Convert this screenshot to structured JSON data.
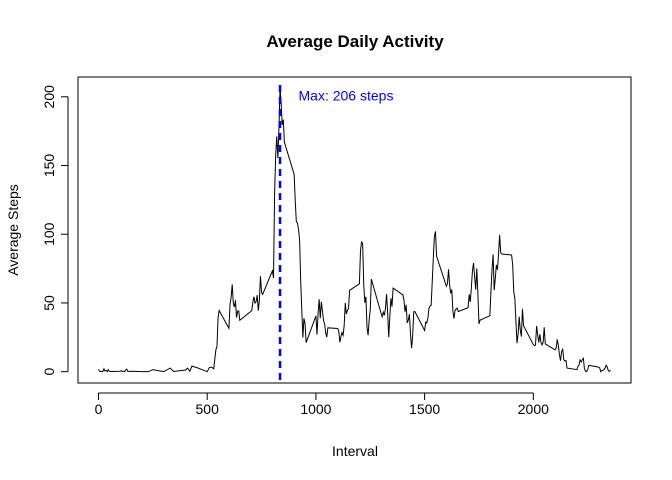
{
  "chart_data": {
    "type": "line",
    "title": "Average Daily Activity",
    "x_label": "Interval",
    "y_label": "Average Steps",
    "x": [
      0,
      5,
      10,
      15,
      20,
      25,
      30,
      35,
      40,
      45,
      50,
      55,
      100,
      105,
      110,
      115,
      120,
      125,
      130,
      135,
      140,
      150,
      200,
      230,
      250,
      300,
      330,
      345,
      400,
      410,
      420,
      430,
      440,
      450,
      500,
      510,
      520,
      530,
      540,
      545,
      550,
      555,
      600,
      605,
      610,
      615,
      620,
      625,
      630,
      635,
      640,
      645,
      650,
      700,
      705,
      710,
      715,
      720,
      725,
      730,
      735,
      740,
      745,
      750,
      755,
      800,
      805,
      810,
      815,
      820,
      825,
      830,
      835,
      840,
      845,
      850,
      855,
      900,
      905,
      910,
      915,
      920,
      925,
      930,
      935,
      940,
      945,
      950,
      955,
      1000,
      1005,
      1010,
      1015,
      1020,
      1025,
      1030,
      1035,
      1040,
      1045,
      1050,
      1055,
      1100,
      1105,
      1110,
      1115,
      1120,
      1125,
      1130,
      1135,
      1140,
      1145,
      1150,
      1155,
      1200,
      1205,
      1210,
      1215,
      1220,
      1225,
      1230,
      1235,
      1240,
      1245,
      1250,
      1255,
      1300,
      1305,
      1310,
      1315,
      1320,
      1325,
      1330,
      1335,
      1340,
      1345,
      1350,
      1355,
      1400,
      1405,
      1410,
      1415,
      1420,
      1425,
      1430,
      1435,
      1440,
      1445,
      1450,
      1455,
      1500,
      1505,
      1510,
      1515,
      1520,
      1525,
      1530,
      1535,
      1540,
      1545,
      1550,
      1555,
      1600,
      1605,
      1610,
      1615,
      1620,
      1625,
      1630,
      1635,
      1640,
      1645,
      1650,
      1655,
      1700,
      1705,
      1710,
      1715,
      1720,
      1725,
      1730,
      1735,
      1740,
      1745,
      1750,
      1755,
      1800,
      1805,
      1810,
      1815,
      1820,
      1825,
      1830,
      1835,
      1840,
      1845,
      1850,
      1855,
      1900,
      1905,
      1910,
      1915,
      1920,
      1925,
      1930,
      1935,
      1940,
      1945,
      1950,
      1955,
      2000,
      2005,
      2010,
      2015,
      2020,
      2025,
      2030,
      2035,
      2040,
      2045,
      2050,
      2055,
      2100,
      2105,
      2110,
      2115,
      2120,
      2125,
      2130,
      2135,
      2140,
      2145,
      2150,
      2155,
      2200,
      2205,
      2210,
      2215,
      2220,
      2225,
      2230,
      2235,
      2240,
      2245,
      2250,
      2255,
      2300,
      2305,
      2310,
      2315,
      2320,
      2325,
      2330,
      2335,
      2340,
      2345,
      2350,
      2355
    ],
    "series": [
      {
        "name": "Average Steps",
        "color": "#000000",
        "values": [
          1.7,
          0.3,
          0.1,
          0.2,
          0.1,
          2.1,
          0.5,
          0.9,
          0,
          1.5,
          0.3,
          0.1,
          0.3,
          0.7,
          0.2,
          0.3,
          0,
          1.1,
          1.8,
          0.2,
          0.2,
          0.3,
          0,
          0,
          1.5,
          0,
          2.6,
          0.1,
          1.2,
          2.6,
          0.3,
          4.1,
          3.5,
          3.1,
          0,
          3,
          3.3,
          2.1,
          16,
          18.3,
          39.5,
          44.5,
          31.5,
          49.3,
          53.8,
          63.5,
          50,
          47,
          52,
          39.3,
          44,
          44.2,
          37.4,
          43.8,
          44.4,
          50.5,
          54.5,
          49.9,
          50.9,
          55.7,
          44.3,
          52.3,
          69.5,
          57.8,
          56.2,
          73.4,
          68.2,
          129.4,
          157.5,
          171.2,
          155.4,
          177.3,
          206.2,
          195.9,
          179.6,
          183.4,
          167,
          143.5,
          124,
          109.1,
          108.1,
          103.7,
          95.9,
          66.2,
          45.2,
          24.8,
          38.8,
          34.9,
          21.1,
          40.6,
          27,
          42.4,
          52.7,
          38.9,
          50.8,
          44.3,
          37.4,
          34.7,
          28.3,
          25.1,
          31.9,
          31.4,
          29.7,
          21.3,
          25.5,
          28.4,
          26.5,
          33.4,
          50,
          42,
          44.6,
          46,
          59.2,
          63.9,
          87.7,
          94.8,
          92.8,
          63.4,
          50.2,
          54.5,
          32.4,
          26.5,
          37.7,
          45.1,
          67.3,
          42.3,
          39.9,
          43.3,
          41,
          46.2,
          56.4,
          42.8,
          25.1,
          40,
          53.5,
          47.3,
          60.8,
          55.8,
          52,
          43.6,
          48.7,
          35.5,
          37.5,
          41.8,
          27.5,
          17.1,
          26.1,
          43.6,
          43.8,
          30,
          36.1,
          35.5,
          38.8,
          46,
          47.8,
          48.1,
          65.3,
          82.9,
          98.7,
          102.1,
          84,
          62.1,
          64.1,
          74.5,
          63.2,
          56.9,
          59.8,
          43.9,
          38.6,
          44.7,
          45.5,
          46.2,
          43.7,
          46.6,
          56.3,
          50.7,
          61.2,
          73.4,
          79.1,
          68.9,
          59.7,
          75.1,
          56.5,
          34.8,
          37.5,
          40.7,
          58,
          74.7,
          85.3,
          59.3,
          67.8,
          77.7,
          74.2,
          85.3,
          99.5,
          86.6,
          85.6,
          84.9,
          77.8,
          58,
          53.4,
          36.3,
          20.7,
          27.4,
          40,
          30.2,
          25.5,
          45.7,
          33.5,
          19.6,
          19,
          19.3,
          33.3,
          26.8,
          21.2,
          27.3,
          21.3,
          19.5,
          21.3,
          32.3,
          20.2,
          15.9,
          17.2,
          23.5,
          19.2,
          12.5,
          8,
          14.7,
          16.3,
          8.7,
          7.8,
          8.1,
          2.6,
          1.5,
          3.7,
          4.8,
          8.5,
          7.1,
          8.7,
          9.8,
          2.2,
          0.3,
          0.1,
          1.6,
          4.6,
          3.3,
          2.8,
          0,
          0.8,
          1,
          1.6,
          2.6,
          4.7,
          3.3,
          0.6,
          0.2,
          1.1
        ]
      }
    ],
    "xlim": [
      -94.2,
      2449.2
    ],
    "ylim": [
      -8.25,
      214.4
    ],
    "xticks": [
      0,
      500,
      1000,
      1500,
      2000
    ],
    "yticks": [
      0,
      50,
      100,
      150,
      200
    ],
    "vline": {
      "x": 835,
      "color": "#0000ff"
    },
    "annotation": {
      "text": "Max: 206 steps",
      "x": 920,
      "y": 200,
      "color": "#0000ff"
    }
  }
}
